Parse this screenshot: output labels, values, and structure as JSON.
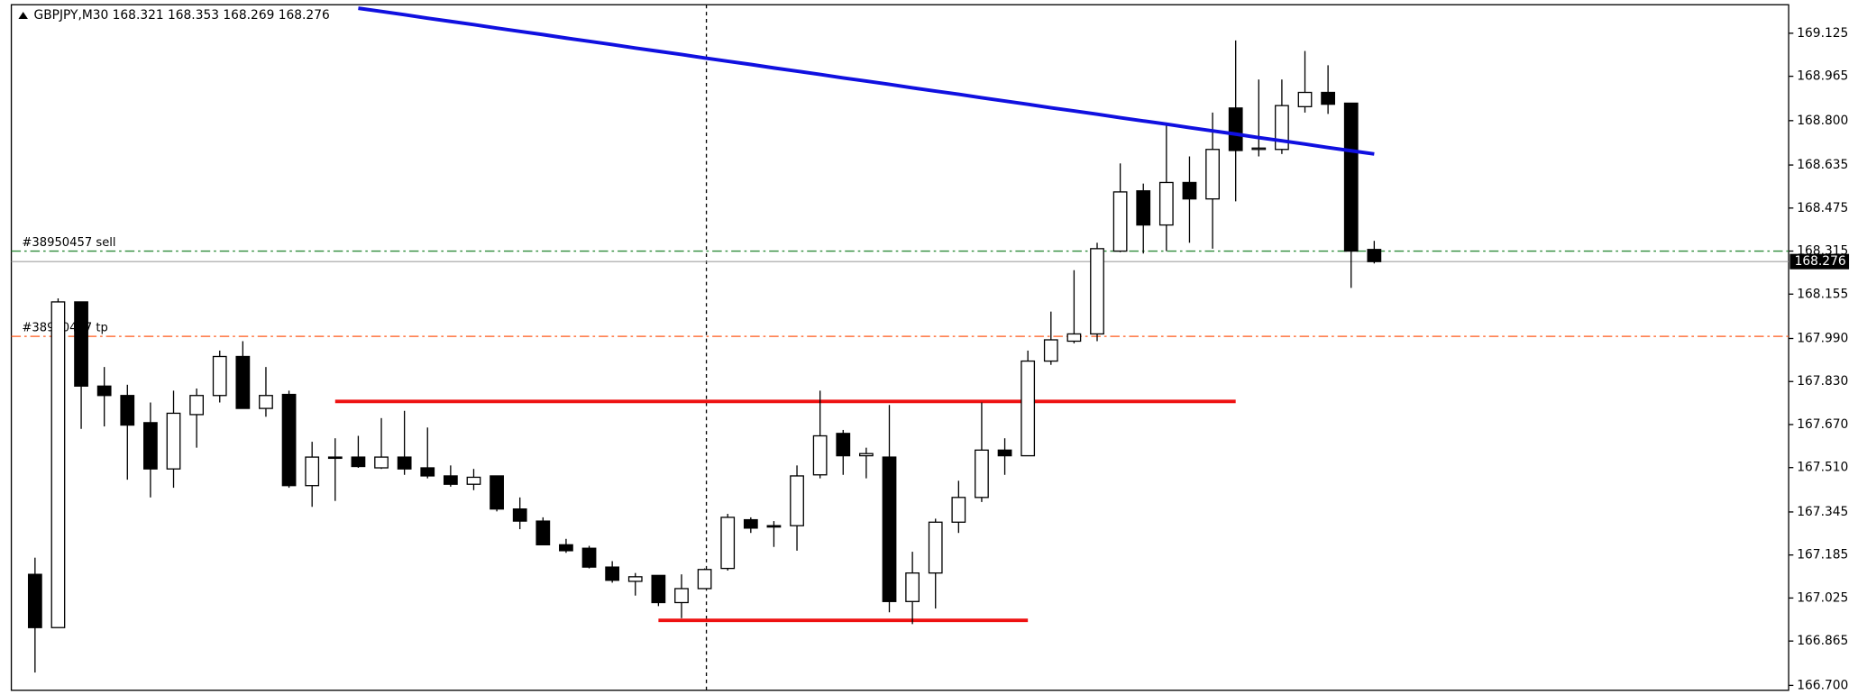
{
  "chart_data": {
    "type": "candlestick",
    "title": "GBPJPY,M30  168.321 168.353 168.269 168.276",
    "open": [
      167.113,
      166.915,
      168.126,
      167.813,
      167.778,
      167.677,
      167.505,
      167.707,
      167.778,
      167.923,
      167.73,
      167.782,
      167.443,
      167.549,
      167.549,
      167.509,
      167.549,
      167.509,
      167.479,
      167.448,
      167.479,
      167.356,
      167.311,
      167.223,
      167.21,
      167.14,
      167.087,
      167.109,
      167.008,
      167.06,
      167.135,
      167.316,
      167.294,
      167.294,
      167.483,
      167.637,
      167.554,
      167.549,
      167.012,
      167.118,
      167.307,
      167.399,
      167.575,
      167.554,
      167.906,
      167.98,
      168.007,
      168.315,
      168.539,
      168.412,
      168.57,
      168.509,
      168.847,
      168.693,
      168.693,
      168.852,
      168.905,
      168.865,
      168.321
    ],
    "high": [
      167.175,
      168.139,
      168.126,
      167.884,
      167.818,
      167.752,
      167.796,
      167.804,
      167.945,
      167.98,
      167.884,
      167.796,
      167.606,
      167.619,
      167.628,
      167.694,
      167.721,
      167.659,
      167.518,
      167.505,
      167.479,
      167.399,
      167.325,
      167.245,
      167.219,
      167.162,
      167.118,
      167.109,
      167.113,
      167.135,
      167.338,
      167.325,
      167.311,
      167.518,
      167.796,
      167.65,
      167.584,
      167.743,
      167.197,
      167.32,
      167.461,
      167.752,
      167.619,
      167.945,
      168.09,
      168.244,
      168.346,
      168.641,
      168.566,
      168.786,
      168.667,
      168.83,
      169.098,
      168.953,
      168.953,
      169.059,
      169.006,
      168.865,
      168.353
    ],
    "low": [
      166.748,
      166.915,
      167.654,
      167.663,
      167.465,
      167.399,
      167.435,
      167.584,
      167.752,
      167.73,
      167.699,
      167.435,
      167.364,
      167.386,
      167.509,
      167.505,
      167.483,
      167.47,
      167.439,
      167.426,
      167.347,
      167.281,
      167.223,
      167.193,
      167.135,
      167.082,
      167.034,
      166.995,
      166.95,
      167.06,
      167.127,
      167.267,
      167.215,
      167.201,
      167.47,
      167.483,
      167.47,
      166.972,
      166.928,
      166.986,
      167.267,
      167.382,
      167.483,
      167.554,
      167.892,
      167.972,
      167.98,
      168.311,
      168.306,
      168.315,
      168.346,
      168.324,
      168.5,
      168.667,
      168.676,
      168.83,
      168.825,
      168.178,
      168.269
    ],
    "close": [
      166.915,
      168.126,
      167.813,
      167.778,
      167.668,
      167.505,
      167.712,
      167.778,
      167.923,
      167.73,
      167.778,
      167.443,
      167.549,
      167.549,
      167.514,
      167.549,
      167.505,
      167.479,
      167.448,
      167.474,
      167.356,
      167.311,
      167.223,
      167.201,
      167.14,
      167.091,
      167.104,
      167.008,
      167.06,
      167.131,
      167.325,
      167.285,
      167.289,
      167.479,
      167.628,
      167.554,
      167.562,
      167.012,
      167.118,
      167.307,
      167.399,
      167.575,
      167.554,
      167.906,
      167.985,
      168.007,
      168.324,
      168.535,
      168.412,
      168.57,
      168.509,
      168.693,
      168.689,
      168.698,
      168.856,
      168.905,
      168.861,
      168.315,
      168.276
    ],
    "ma": {
      "color": "#1010e0",
      "values": [
        null,
        null,
        null,
        null,
        null,
        null,
        null,
        null,
        null,
        null,
        null,
        null,
        null,
        null,
        169.218,
        169.206,
        169.194,
        169.181,
        169.169,
        169.157,
        169.144,
        169.132,
        169.12,
        169.107,
        169.095,
        169.083,
        169.07,
        169.058,
        169.046,
        169.033,
        169.021,
        169.009,
        168.996,
        168.984,
        168.972,
        168.959,
        168.947,
        168.935,
        168.922,
        168.91,
        168.898,
        168.885,
        168.873,
        168.861,
        168.848,
        168.836,
        168.824,
        168.811,
        168.799,
        168.787,
        168.774,
        168.762,
        168.75,
        168.737,
        168.725,
        168.713,
        168.7,
        168.688,
        168.676
      ]
    },
    "orders": [
      {
        "label": "#38950457 sell",
        "value": 168.315,
        "color": "#2e8b3a"
      },
      {
        "label": "#38950457 tp",
        "value": 167.998,
        "color": "#ff5a1a"
      }
    ],
    "lines": [
      {
        "value": 167.756,
        "from": 13,
        "to": 52,
        "color": "#ee1111"
      },
      {
        "value": 166.942,
        "from": 27,
        "to": 43,
        "color": "#ee1111"
      }
    ],
    "ylim": [
      166.682,
      169.231
    ],
    "yticks": [
      169.125,
      168.965,
      {
        "value": 168.8,
        "label": "168.800"
      },
      168.635,
      168.475,
      168.315,
      168.155,
      {
        "value": 167.99,
        "label": "167.990"
      },
      {
        "value": 167.83,
        "label": "167.830"
      },
      {
        "value": 167.67,
        "label": "167.670"
      },
      {
        "value": 167.51,
        "label": "167.510"
      },
      167.345,
      167.185,
      167.025,
      166.865,
      {
        "value": 166.7,
        "label": "166.700"
      }
    ]
  }
}
